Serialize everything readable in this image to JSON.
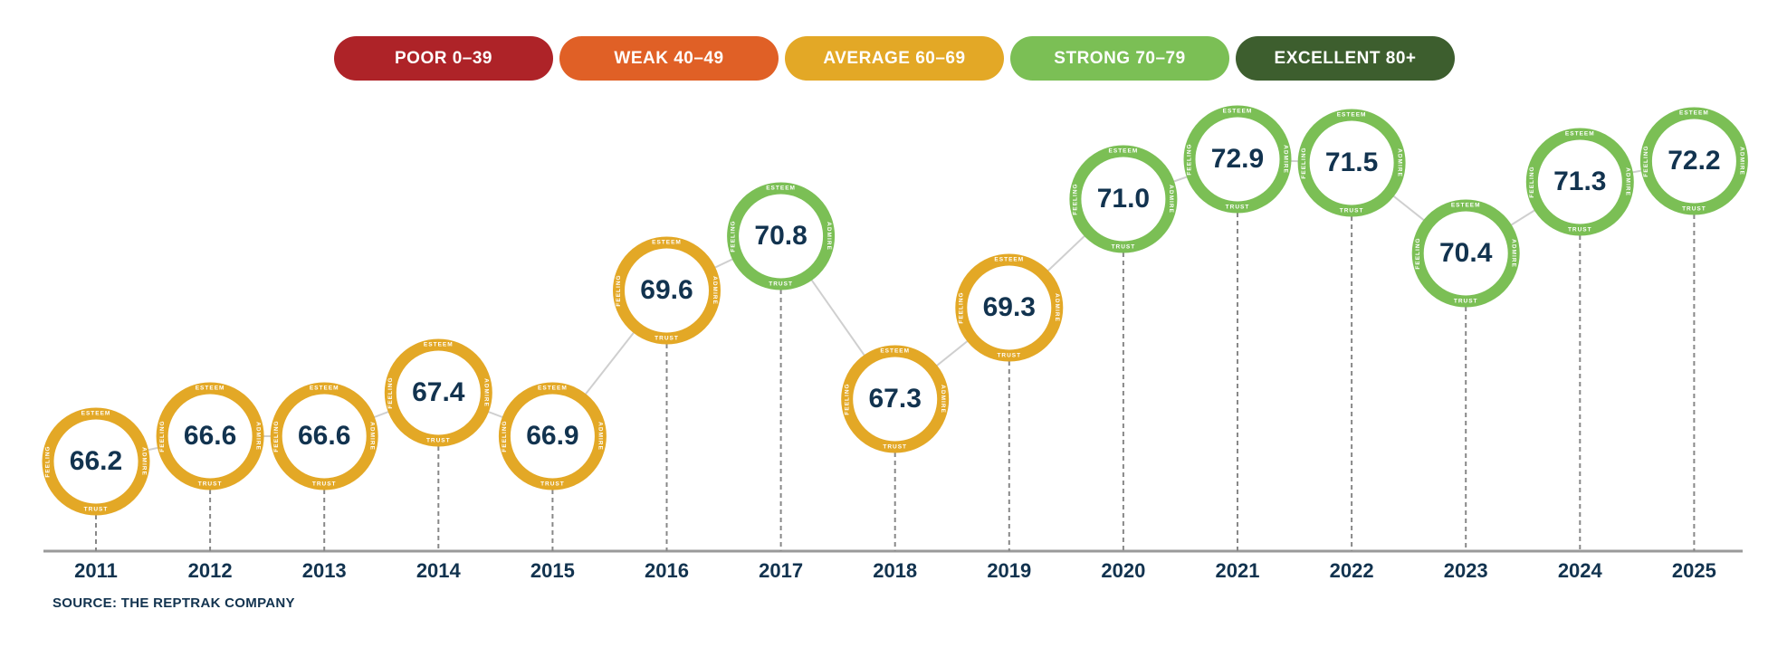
{
  "legend": [
    {
      "label": "POOR  0–39",
      "color": "#AE2328"
    },
    {
      "label": "WEAK  40–49",
      "color": "#E06026"
    },
    {
      "label": "AVERAGE  60–69",
      "color": "#E3A826"
    },
    {
      "label": "STRONG  70–79",
      "color": "#7BBF55"
    },
    {
      "label": "EXCELLENT  80+",
      "color": "#3D5E2E"
    }
  ],
  "ring_labels": {
    "top": "ESTEEM",
    "right": "ADMIRE",
    "bottom": "TRUST",
    "left": "FEELING"
  },
  "source": "SOURCE: THE REPTRAK COMPANY",
  "chart_data": {
    "type": "line",
    "categories": [
      "2011",
      "2012",
      "2013",
      "2014",
      "2015",
      "2016",
      "2017",
      "2018",
      "2019",
      "2020",
      "2021",
      "2022",
      "2023",
      "2024",
      "2025"
    ],
    "values": [
      66.2,
      66.6,
      66.6,
      67.4,
      66.9,
      69.6,
      70.8,
      67.3,
      69.3,
      71.0,
      72.9,
      71.5,
      70.4,
      71.3,
      72.2
    ],
    "value_labels": [
      "66.2",
      "66.6",
      "66.6",
      "67.4",
      "66.9",
      "69.6",
      "70.8",
      "67.3",
      "69.3",
      "71.0",
      "72.9",
      "71.5",
      "70.4",
      "71.3",
      "72.2"
    ],
    "bands": [
      "average",
      "average",
      "average",
      "average",
      "average",
      "average",
      "strong",
      "average",
      "average",
      "strong",
      "strong",
      "strong",
      "strong",
      "strong",
      "strong"
    ],
    "band_colors": {
      "average": "#E3A826",
      "strong": "#7BBF55"
    },
    "text_color": "#12334f"
  }
}
